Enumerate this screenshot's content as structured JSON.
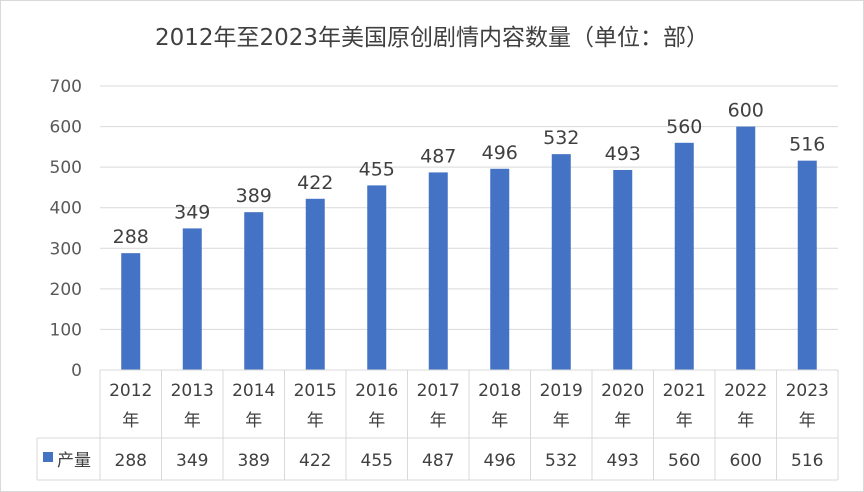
{
  "chart_data": {
    "type": "bar",
    "title": "2012年至2023年美国原创剧情内容数量（单位：部）",
    "categories": [
      "2012年",
      "2013年",
      "2014年",
      "2015年",
      "2016年",
      "2017年",
      "2018年",
      "2019年",
      "2020年",
      "2021年",
      "2022年",
      "2023年"
    ],
    "series": [
      {
        "name": "产量",
        "values": [
          288,
          349,
          389,
          422,
          455,
          487,
          496,
          532,
          493,
          560,
          600,
          516
        ]
      }
    ],
    "ylim": [
      0,
      700
    ],
    "yticks": [
      0,
      100,
      200,
      300,
      400,
      500,
      600,
      700
    ],
    "grid": true,
    "data_table": true,
    "legend": "data-table",
    "colors": {
      "bar": "#4472c4",
      "grid": "#d9d9d9",
      "text": "#404040"
    }
  }
}
